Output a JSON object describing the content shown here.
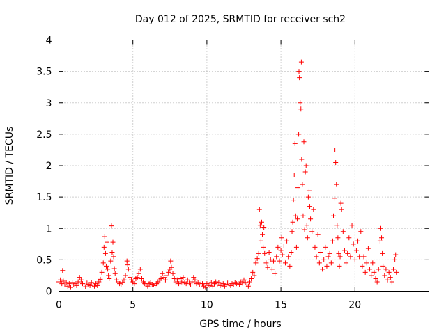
{
  "chart_data": {
    "type": "scatter",
    "title": "Day 012 of 2025, SRMTID for receiver sch2",
    "xlabel": "GPS time / hours",
    "ylabel": "SRMTID / TECUs",
    "xlim": [
      0,
      25
    ],
    "ylim": [
      0,
      4
    ],
    "xticks": [
      0,
      5,
      10,
      15,
      20
    ],
    "yticks": [
      0,
      0.5,
      1,
      1.5,
      2,
      2.5,
      3,
      3.5,
      4
    ],
    "xtick_labels": [
      "0",
      "5",
      "10",
      "15",
      "20"
    ],
    "ytick_labels": [
      "0",
      "0.5",
      "1",
      "1.5",
      "2",
      "2.5",
      "3",
      "3.5",
      "4"
    ],
    "grid": true,
    "marker": "+",
    "color": "#ff0000",
    "series": [
      {
        "name": "SRMTID",
        "points": [
          [
            0.0,
            0.15
          ],
          [
            0.1,
            0.18
          ],
          [
            0.2,
            0.12
          ],
          [
            0.25,
            0.33
          ],
          [
            0.3,
            0.16
          ],
          [
            0.4,
            0.1
          ],
          [
            0.5,
            0.14
          ],
          [
            0.6,
            0.08
          ],
          [
            0.7,
            0.12
          ],
          [
            0.8,
            0.06
          ],
          [
            0.9,
            0.14
          ],
          [
            1.0,
            0.1
          ],
          [
            1.1,
            0.12
          ],
          [
            1.2,
            0.09
          ],
          [
            1.3,
            0.15
          ],
          [
            1.4,
            0.22
          ],
          [
            1.5,
            0.18
          ],
          [
            1.6,
            0.12
          ],
          [
            1.7,
            0.1
          ],
          [
            1.8,
            0.07
          ],
          [
            1.9,
            0.13
          ],
          [
            2.0,
            0.11
          ],
          [
            2.1,
            0.09
          ],
          [
            2.2,
            0.14
          ],
          [
            2.3,
            0.1
          ],
          [
            2.4,
            0.08
          ],
          [
            2.5,
            0.12
          ],
          [
            2.6,
            0.09
          ],
          [
            2.7,
            0.15
          ],
          [
            2.8,
            0.19
          ],
          [
            2.9,
            0.3
          ],
          [
            3.0,
            0.45
          ],
          [
            3.05,
            0.7
          ],
          [
            3.1,
            0.87
          ],
          [
            3.15,
            0.6
          ],
          [
            3.2,
            0.4
          ],
          [
            3.25,
            0.78
          ],
          [
            3.3,
            0.35
          ],
          [
            3.35,
            0.25
          ],
          [
            3.4,
            0.2
          ],
          [
            3.5,
            0.48
          ],
          [
            3.55,
            1.04
          ],
          [
            3.6,
            0.62
          ],
          [
            3.65,
            0.78
          ],
          [
            3.7,
            0.55
          ],
          [
            3.75,
            0.36
          ],
          [
            3.8,
            0.28
          ],
          [
            3.9,
            0.18
          ],
          [
            4.0,
            0.15
          ],
          [
            4.1,
            0.12
          ],
          [
            4.2,
            0.1
          ],
          [
            4.3,
            0.14
          ],
          [
            4.4,
            0.18
          ],
          [
            4.5,
            0.25
          ],
          [
            4.6,
            0.48
          ],
          [
            4.65,
            0.42
          ],
          [
            4.7,
            0.35
          ],
          [
            4.8,
            0.22
          ],
          [
            4.9,
            0.18
          ],
          [
            5.0,
            0.15
          ],
          [
            5.1,
            0.12
          ],
          [
            5.2,
            0.2
          ],
          [
            5.3,
            0.22
          ],
          [
            5.4,
            0.28
          ],
          [
            5.5,
            0.35
          ],
          [
            5.6,
            0.2
          ],
          [
            5.7,
            0.15
          ],
          [
            5.8,
            0.12
          ],
          [
            5.9,
            0.1
          ],
          [
            6.0,
            0.08
          ],
          [
            6.1,
            0.12
          ],
          [
            6.2,
            0.14
          ],
          [
            6.3,
            0.11
          ],
          [
            6.4,
            0.1
          ],
          [
            6.5,
            0.09
          ],
          [
            6.6,
            0.12
          ],
          [
            6.7,
            0.15
          ],
          [
            6.8,
            0.18
          ],
          [
            6.9,
            0.2
          ],
          [
            7.0,
            0.28
          ],
          [
            7.1,
            0.22
          ],
          [
            7.2,
            0.18
          ],
          [
            7.3,
            0.25
          ],
          [
            7.4,
            0.3
          ],
          [
            7.5,
            0.35
          ],
          [
            7.55,
            0.48
          ],
          [
            7.6,
            0.38
          ],
          [
            7.7,
            0.28
          ],
          [
            7.8,
            0.2
          ],
          [
            7.9,
            0.15
          ],
          [
            8.0,
            0.18
          ],
          [
            8.1,
            0.12
          ],
          [
            8.2,
            0.2
          ],
          [
            8.3,
            0.15
          ],
          [
            8.4,
            0.22
          ],
          [
            8.5,
            0.14
          ],
          [
            8.6,
            0.12
          ],
          [
            8.7,
            0.18
          ],
          [
            8.8,
            0.13
          ],
          [
            8.9,
            0.1
          ],
          [
            9.0,
            0.15
          ],
          [
            9.1,
            0.22
          ],
          [
            9.2,
            0.18
          ],
          [
            9.3,
            0.12
          ],
          [
            9.4,
            0.14
          ],
          [
            9.5,
            0.1
          ],
          [
            9.6,
            0.13
          ],
          [
            9.7,
            0.12
          ],
          [
            9.8,
            0.08
          ],
          [
            9.9,
            0.06
          ],
          [
            10.0,
            0.12
          ],
          [
            10.1,
            0.1
          ],
          [
            10.2,
            0.09
          ],
          [
            10.3,
            0.14
          ],
          [
            10.4,
            0.08
          ],
          [
            10.5,
            0.12
          ],
          [
            10.6,
            0.15
          ],
          [
            10.7,
            0.1
          ],
          [
            10.8,
            0.14
          ],
          [
            10.9,
            0.09
          ],
          [
            11.0,
            0.1
          ],
          [
            11.1,
            0.12
          ],
          [
            11.2,
            0.08
          ],
          [
            11.3,
            0.11
          ],
          [
            11.4,
            0.13
          ],
          [
            11.5,
            0.1
          ],
          [
            11.6,
            0.09
          ],
          [
            11.7,
            0.12
          ],
          [
            11.8,
            0.1
          ],
          [
            11.9,
            0.14
          ],
          [
            12.0,
            0.12
          ],
          [
            12.1,
            0.1
          ],
          [
            12.2,
            0.11
          ],
          [
            12.3,
            0.15
          ],
          [
            12.4,
            0.13
          ],
          [
            12.5,
            0.18
          ],
          [
            12.6,
            0.14
          ],
          [
            12.7,
            0.1
          ],
          [
            12.8,
            0.08
          ],
          [
            12.9,
            0.15
          ],
          [
            13.0,
            0.2
          ],
          [
            13.1,
            0.3
          ],
          [
            13.2,
            0.25
          ],
          [
            13.3,
            0.45
          ],
          [
            13.4,
            0.52
          ],
          [
            13.5,
            0.6
          ],
          [
            13.55,
            1.3
          ],
          [
            13.6,
            1.05
          ],
          [
            13.65,
            0.8
          ],
          [
            13.7,
            1.1
          ],
          [
            13.75,
            0.9
          ],
          [
            13.8,
            0.7
          ],
          [
            13.85,
            1.02
          ],
          [
            13.9,
            0.6
          ],
          [
            14.0,
            0.45
          ],
          [
            14.1,
            0.38
          ],
          [
            14.2,
            0.62
          ],
          [
            14.3,
            0.5
          ],
          [
            14.4,
            0.35
          ],
          [
            14.5,
            0.48
          ],
          [
            14.6,
            0.28
          ],
          [
            14.7,
            0.55
          ],
          [
            14.8,
            0.7
          ],
          [
            14.9,
            0.48
          ],
          [
            15.0,
            0.65
          ],
          [
            15.05,
            0.85
          ],
          [
            15.1,
            0.58
          ],
          [
            15.2,
            0.72
          ],
          [
            15.3,
            0.45
          ],
          [
            15.4,
            0.8
          ],
          [
            15.5,
            0.55
          ],
          [
            15.6,
            0.4
          ],
          [
            15.7,
            0.62
          ],
          [
            15.75,
            0.95
          ],
          [
            15.8,
            1.1
          ],
          [
            15.85,
            1.45
          ],
          [
            15.9,
            1.85
          ],
          [
            15.95,
            2.35
          ],
          [
            16.0,
            1.2
          ],
          [
            16.05,
            0.7
          ],
          [
            16.1,
            1.15
          ],
          [
            16.15,
            1.65
          ],
          [
            16.2,
            2.5
          ],
          [
            16.22,
            3.5
          ],
          [
            16.25,
            3.4
          ],
          [
            16.3,
            3.0
          ],
          [
            16.35,
            2.9
          ],
          [
            16.38,
            3.65
          ],
          [
            16.4,
            2.1
          ],
          [
            16.45,
            1.7
          ],
          [
            16.5,
            1.2
          ],
          [
            16.55,
            2.38
          ],
          [
            16.6,
            0.98
          ],
          [
            16.65,
            1.9
          ],
          [
            16.7,
            2.0
          ],
          [
            16.75,
            1.05
          ],
          [
            16.8,
            0.85
          ],
          [
            16.85,
            1.5
          ],
          [
            16.9,
            1.6
          ],
          [
            16.95,
            1.35
          ],
          [
            17.0,
            1.15
          ],
          [
            17.1,
            0.95
          ],
          [
            17.2,
            1.3
          ],
          [
            17.3,
            0.7
          ],
          [
            17.4,
            0.55
          ],
          [
            17.5,
            0.9
          ],
          [
            17.6,
            0.45
          ],
          [
            17.7,
            0.62
          ],
          [
            17.8,
            0.35
          ],
          [
            17.9,
            0.5
          ],
          [
            18.0,
            0.7
          ],
          [
            18.1,
            0.4
          ],
          [
            18.2,
            0.55
          ],
          [
            18.3,
            0.6
          ],
          [
            18.4,
            0.45
          ],
          [
            18.5,
            0.8
          ],
          [
            18.55,
            1.2
          ],
          [
            18.6,
            1.48
          ],
          [
            18.65,
            2.25
          ],
          [
            18.7,
            2.05
          ],
          [
            18.75,
            1.7
          ],
          [
            18.8,
            1.05
          ],
          [
            18.85,
            0.85
          ],
          [
            18.9,
            0.6
          ],
          [
            18.95,
            0.4
          ],
          [
            19.0,
            0.55
          ],
          [
            19.05,
            1.4
          ],
          [
            19.1,
            1.3
          ],
          [
            19.2,
            0.95
          ],
          [
            19.3,
            0.65
          ],
          [
            19.4,
            0.45
          ],
          [
            19.5,
            0.6
          ],
          [
            19.6,
            0.85
          ],
          [
            19.7,
            0.55
          ],
          [
            19.8,
            1.05
          ],
          [
            19.9,
            0.75
          ],
          [
            20.0,
            0.5
          ],
          [
            20.1,
            0.65
          ],
          [
            20.2,
            0.8
          ],
          [
            20.3,
            0.55
          ],
          [
            20.4,
            0.95
          ],
          [
            20.5,
            0.4
          ],
          [
            20.6,
            0.55
          ],
          [
            20.7,
            0.3
          ],
          [
            20.8,
            0.45
          ],
          [
            20.9,
            0.68
          ],
          [
            21.0,
            0.35
          ],
          [
            21.1,
            0.25
          ],
          [
            21.2,
            0.45
          ],
          [
            21.3,
            0.3
          ],
          [
            21.4,
            0.2
          ],
          [
            21.5,
            0.15
          ],
          [
            21.6,
            0.35
          ],
          [
            21.7,
            0.8
          ],
          [
            21.75,
            1.0
          ],
          [
            21.8,
            0.85
          ],
          [
            21.85,
            0.6
          ],
          [
            21.9,
            0.4
          ],
          [
            22.0,
            0.25
          ],
          [
            22.1,
            0.35
          ],
          [
            22.2,
            0.18
          ],
          [
            22.3,
            0.3
          ],
          [
            22.4,
            0.22
          ],
          [
            22.5,
            0.15
          ],
          [
            22.6,
            0.35
          ],
          [
            22.7,
            0.5
          ],
          [
            22.75,
            0.58
          ],
          [
            22.8,
            0.3
          ]
        ]
      }
    ]
  }
}
